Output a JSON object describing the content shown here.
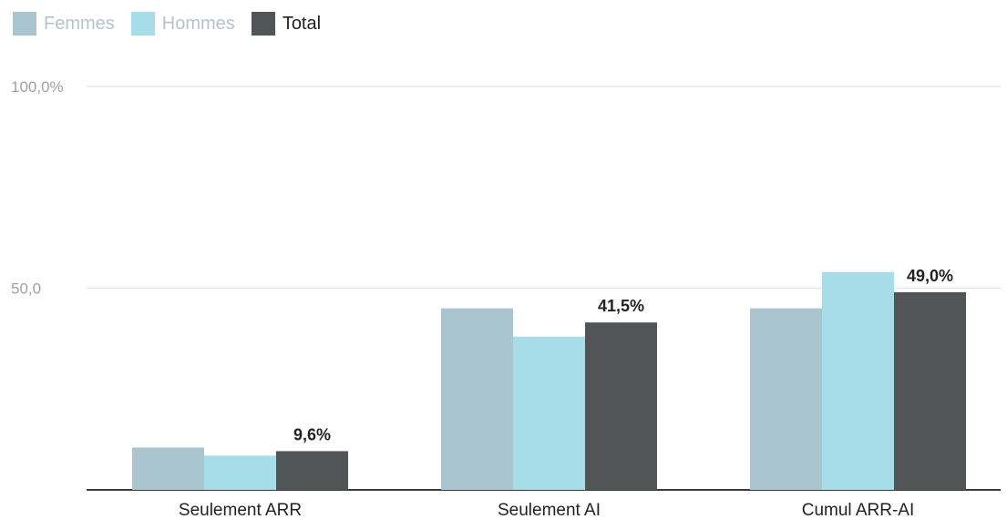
{
  "chart_data": {
    "type": "bar",
    "categories": [
      "Seulement ARR",
      "Seulement AI",
      "Cumul ARR-AI"
    ],
    "series": [
      {
        "name": "Femmes",
        "values": [
          10.5,
          45.0,
          45.0
        ],
        "color": "#aac5cd",
        "legend_state": "inactive"
      },
      {
        "name": "Hommes",
        "values": [
          8.5,
          38.0,
          54.0
        ],
        "color": "#a6dde9",
        "legend_state": "inactive"
      },
      {
        "name": "Total",
        "values": [
          9.6,
          41.5,
          49.0
        ],
        "color": "#515556",
        "legend_state": "active"
      }
    ],
    "data_labels": {
      "Total": [
        "9,6%",
        "41,5%",
        "49,0%"
      ]
    },
    "y_ticks": [
      {
        "value": 50,
        "label": "50,0"
      },
      {
        "value": 100,
        "label": "100,0%"
      }
    ],
    "ylim": [
      0,
      100
    ],
    "grid": true,
    "legend_position": "top-left",
    "title": "",
    "xlabel": "",
    "ylabel": ""
  }
}
